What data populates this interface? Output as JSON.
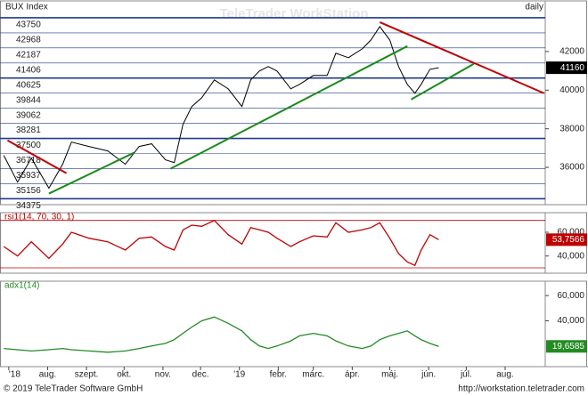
{
  "chart_data": [
    {
      "type": "line",
      "title": "BUX Index",
      "period": "daily",
      "color": "#000000",
      "x": [
        -4,
        7,
        18,
        32,
        43,
        50,
        64,
        79,
        93,
        104,
        114,
        125,
        132,
        139,
        146,
        154,
        164,
        175,
        186,
        193,
        200,
        207,
        214,
        225,
        232,
        243,
        254,
        261,
        271,
        282,
        289,
        296,
        304,
        311,
        318,
        324,
        329,
        336,
        343
      ],
      "values": [
        36620,
        35240,
        36480,
        34920,
        36160,
        37310,
        37080,
        36850,
        36160,
        37080,
        37220,
        36390,
        36250,
        38230,
        39150,
        39610,
        40530,
        40070,
        39150,
        40530,
        40990,
        41220,
        40990,
        40070,
        40300,
        40760,
        40760,
        41910,
        41680,
        42140,
        42600,
        43290,
        42600,
        41220,
        40300,
        39840,
        40300,
        41080,
        41160
      ],
      "xlim": [
        -7,
        428
      ],
      "xticks": [
        {
          "value": 0,
          "label": "'18"
        },
        {
          "value": 31,
          "label": "aug."
        },
        {
          "value": 62,
          "label": "szept."
        },
        {
          "value": 92,
          "label": "okt."
        },
        {
          "value": 123,
          "label": "nov."
        },
        {
          "value": 153,
          "label": "dec."
        },
        {
          "value": 184,
          "label": "'19"
        },
        {
          "value": 215,
          "label": "febr."
        },
        {
          "value": 243,
          "label": "márc."
        },
        {
          "value": 274,
          "label": "ápr."
        },
        {
          "value": 304,
          "label": "máj."
        },
        {
          "value": 335,
          "label": "jún."
        },
        {
          "value": 365,
          "label": "júl."
        },
        {
          "value": 396,
          "label": "aug."
        }
      ],
      "ylim": [
        34160,
        44530
      ],
      "yticks": [
        36000,
        38000,
        40000,
        42000
      ],
      "levels": [
        43750,
        42968,
        42187,
        41406,
        40625,
        39844,
        39062,
        38281,
        37500,
        36718,
        35937,
        35156,
        34375
      ],
      "level_color": "#1f3a8a",
      "trendlines": [
        {
          "color": "#c00000",
          "x": [
            -1,
            46
          ],
          "values": [
            37400,
            35700
          ]
        },
        {
          "color": "#1a8a1a",
          "x": [
            32,
            100
          ],
          "values": [
            34640,
            36760
          ]
        },
        {
          "color": "#1a8a1a",
          "x": [
            129,
            318
          ],
          "values": [
            35930,
            42280
          ]
        },
        {
          "color": "#1a8a1a",
          "x": [
            321,
            371
          ],
          "values": [
            39520,
            41360
          ]
        },
        {
          "color": "#c00000",
          "x": [
            296,
            427
          ],
          "values": [
            43520,
            39840
          ]
        }
      ]
    },
    {
      "type": "line",
      "title": "rsi1(14, 70, 30, 1)",
      "color": "#c00000",
      "values": [
        48,
        40,
        52,
        38,
        50,
        60,
        55,
        52,
        45,
        55,
        56,
        48,
        45,
        62,
        66,
        65,
        70,
        58,
        50,
        64,
        62,
        60,
        55,
        48,
        52,
        57,
        56,
        68,
        60,
        62,
        64,
        68,
        55,
        42,
        35,
        32,
        45,
        58,
        53.7566
      ],
      "value_labels": [
        null,
        null,
        null,
        null,
        null,
        null,
        null,
        null,
        null,
        null,
        null,
        null,
        null,
        null,
        null,
        null,
        null,
        null,
        null,
        null,
        null,
        null,
        null,
        null,
        null,
        null,
        null,
        null,
        null,
        null,
        null,
        null,
        null,
        null,
        null,
        null,
        null,
        null,
        "53,7566"
      ],
      "ylim": [
        27,
        75
      ],
      "yticks": [
        {
          "value": 40,
          "label": "40,000"
        },
        {
          "value": 60,
          "label": "60,000"
        }
      ],
      "levels": [
        30,
        70
      ]
    },
    {
      "type": "line",
      "title": "adx1(14)",
      "color": "#228b22",
      "values": [
        18,
        17,
        16,
        17,
        18,
        17,
        16,
        15,
        16,
        18,
        20,
        22,
        25,
        30,
        35,
        40,
        43,
        38,
        32,
        25,
        20,
        18,
        20,
        24,
        28,
        30,
        28,
        24,
        20,
        18,
        20,
        25,
        28,
        30,
        32,
        28,
        25,
        22,
        19.6585
      ],
      "value_labels": [
        null,
        null,
        null,
        null,
        null,
        null,
        null,
        null,
        null,
        null,
        null,
        null,
        null,
        null,
        null,
        null,
        null,
        null,
        null,
        null,
        null,
        null,
        null,
        null,
        null,
        null,
        null,
        null,
        null,
        null,
        null,
        null,
        null,
        null,
        null,
        null,
        null,
        null,
        "19,6585"
      ],
      "ylim": [
        5,
        70
      ],
      "yticks": [
        {
          "value": 40,
          "label": "40,000"
        },
        {
          "value": 60,
          "label": "60,000"
        }
      ]
    }
  ],
  "watermark": "TeleTrader WorkStation",
  "footer": {
    "copyright": "© 2019 TeleTrader Software GmbH",
    "url": "http://workstation.teletrader.com"
  }
}
